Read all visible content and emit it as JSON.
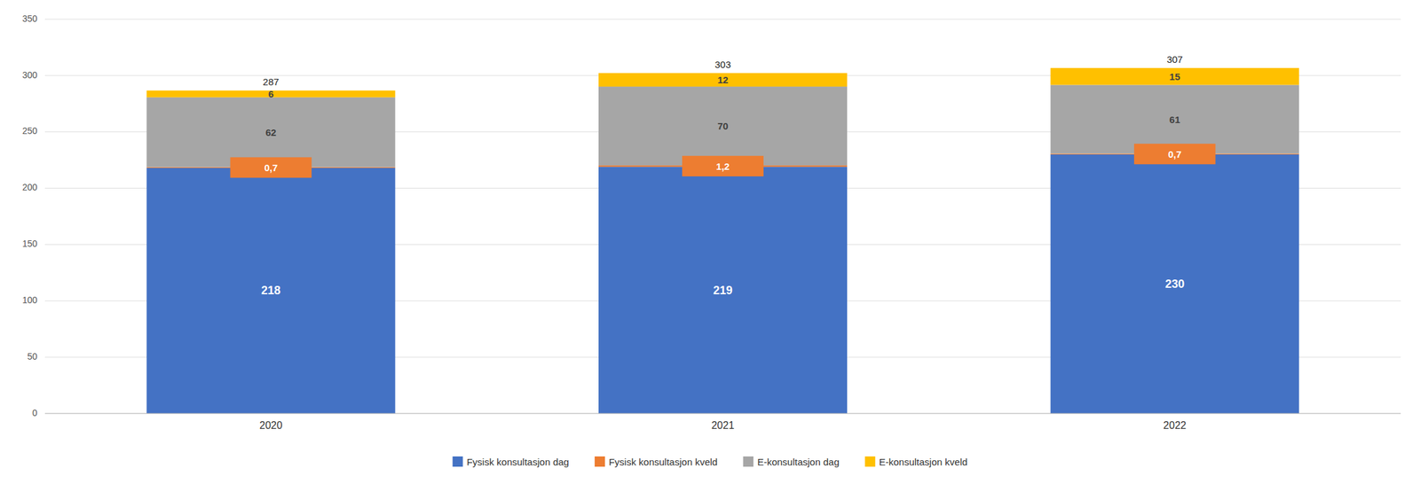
{
  "chart_data": {
    "type": "bar",
    "stacked": true,
    "data_labels": true,
    "grid": true,
    "legend": "bottom",
    "categories": [
      "2020",
      "2021",
      "2022"
    ],
    "series": [
      {
        "name": "Fysisk konsultasjon dag",
        "color": "#4472C4",
        "values": [
          218,
          219,
          230
        ]
      },
      {
        "name": "Fysisk konsultasjon kveld",
        "color": "#ED7D31",
        "values": [
          0.7,
          1.2,
          0.7
        ],
        "value_labels": [
          "0,7",
          "1,2",
          "0,7"
        ]
      },
      {
        "name": "E-konsultasjon dag",
        "color": "#A6A6A6",
        "values": [
          62,
          70,
          61
        ]
      },
      {
        "name": "E-konsultasjon kveld",
        "color": "#FFC000",
        "values": [
          6,
          12,
          15
        ]
      }
    ],
    "totals": [
      287,
      303,
      307
    ],
    "ylim": [
      0,
      350
    ],
    "yticks": [
      0,
      50,
      100,
      150,
      200,
      250,
      300,
      350
    ]
  }
}
